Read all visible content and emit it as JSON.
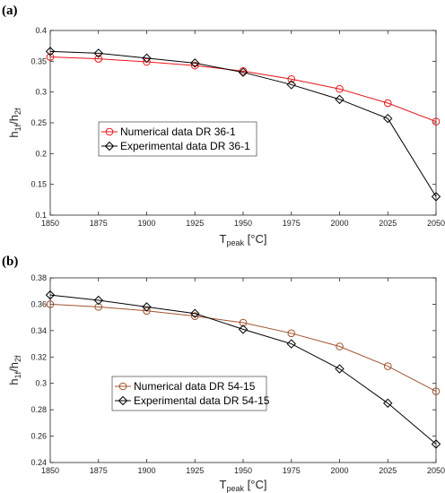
{
  "chart_data": [
    {
      "panel_label": "(a)",
      "type": "line",
      "xlabel": "T",
      "xlabel_sub": "peak",
      "xlabel_unit": " [°C]",
      "ylabel": "h",
      "ylabel_sub1": "1f",
      "ylabel_mid": "/h",
      "ylabel_sub2": "2f",
      "xlim": [
        1850,
        2050
      ],
      "ylim": [
        0.1,
        0.4
      ],
      "xticks": [
        1850,
        1875,
        1900,
        1925,
        1950,
        1975,
        2000,
        2025,
        2050
      ],
      "yticks": [
        0.1,
        0.15,
        0.2,
        0.25,
        0.3,
        0.35,
        0.4
      ],
      "grid": false,
      "legend_position": "middle-left",
      "x": [
        1850,
        1875,
        1900,
        1925,
        1950,
        1975,
        2000,
        2025,
        2050
      ],
      "series": [
        {
          "name": "Numerical data DR 36-1",
          "color": "#e8141a",
          "marker": "circle",
          "values": [
            0.357,
            0.354,
            0.349,
            0.343,
            0.334,
            0.321,
            0.305,
            0.282,
            0.252
          ]
        },
        {
          "name": "Experimental data DR 36-1",
          "color": "#000000",
          "marker": "diamond",
          "values": [
            0.366,
            0.363,
            0.355,
            0.347,
            0.332,
            0.312,
            0.288,
            0.257,
            0.13
          ]
        }
      ]
    },
    {
      "panel_label": "(b)",
      "type": "line",
      "xlabel": "T",
      "xlabel_sub": "peak",
      "xlabel_unit": " [°C]",
      "ylabel": "h",
      "ylabel_sub1": "1f",
      "ylabel_mid": "/h",
      "ylabel_sub2": "2f",
      "xlim": [
        1850,
        2050
      ],
      "ylim": [
        0.24,
        0.38
      ],
      "xticks": [
        1850,
        1875,
        1900,
        1925,
        1950,
        1975,
        2000,
        2025,
        2050
      ],
      "yticks": [
        0.24,
        0.26,
        0.28,
        0.3,
        0.32,
        0.34,
        0.36,
        0.38
      ],
      "grid": false,
      "legend_position": "bottom-left",
      "x": [
        1850,
        1875,
        1900,
        1925,
        1950,
        1975,
        2000,
        2025,
        2050
      ],
      "series": [
        {
          "name": "Numerical data DR 54-15",
          "color": "#a0522d",
          "marker": "circle",
          "values": [
            0.36,
            0.358,
            0.355,
            0.351,
            0.346,
            0.338,
            0.328,
            0.313,
            0.294
          ]
        },
        {
          "name": "Experimental data DR 54-15",
          "color": "#000000",
          "marker": "diamond",
          "values": [
            0.367,
            0.363,
            0.358,
            0.353,
            0.341,
            0.33,
            0.311,
            0.285,
            0.254
          ]
        }
      ]
    }
  ]
}
